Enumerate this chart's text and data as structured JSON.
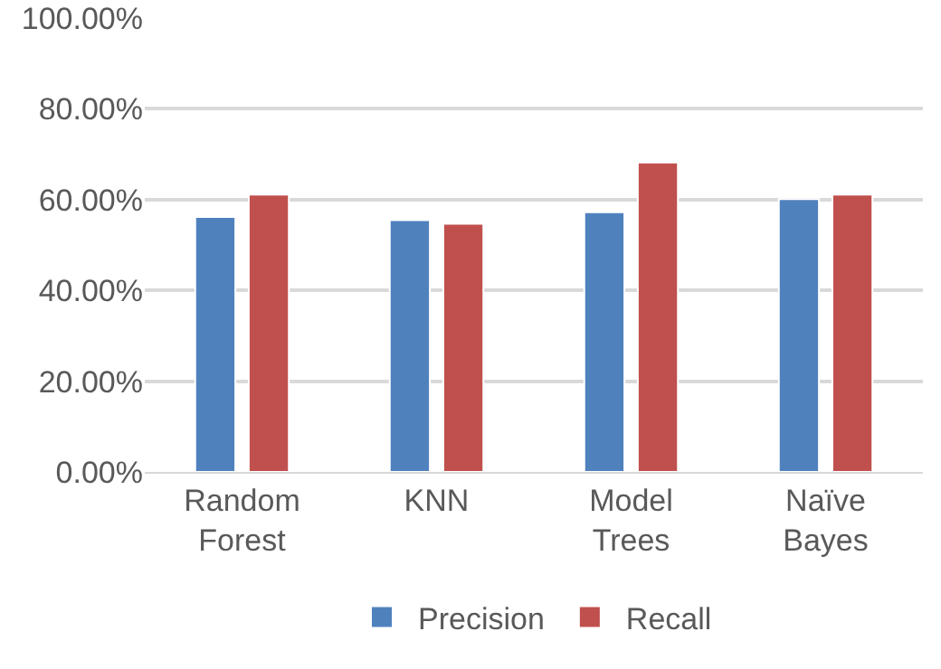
{
  "chart_data": {
    "type": "bar",
    "categories": [
      "Random Forest",
      "KNN",
      "Model Trees",
      "Naïve Bayes"
    ],
    "series": [
      {
        "name": "Precision",
        "color": "#4f81bd",
        "values": [
          56.2,
          55.5,
          57.2,
          60.1
        ]
      },
      {
        "name": "Recall",
        "color": "#c0504d",
        "values": [
          61.1,
          54.7,
          68.2,
          61.1
        ]
      }
    ],
    "ylim": [
      0,
      100
    ],
    "yticks": [
      {
        "value": 0,
        "label": "0.00%"
      },
      {
        "value": 20,
        "label": "20.00%"
      },
      {
        "value": 40,
        "label": "40.00%"
      },
      {
        "value": 60,
        "label": "60.00%"
      },
      {
        "value": 80,
        "label": "80.00%"
      },
      {
        "value": 100,
        "label": "100.00%"
      }
    ],
    "grid": "y",
    "legend": "bottom"
  }
}
